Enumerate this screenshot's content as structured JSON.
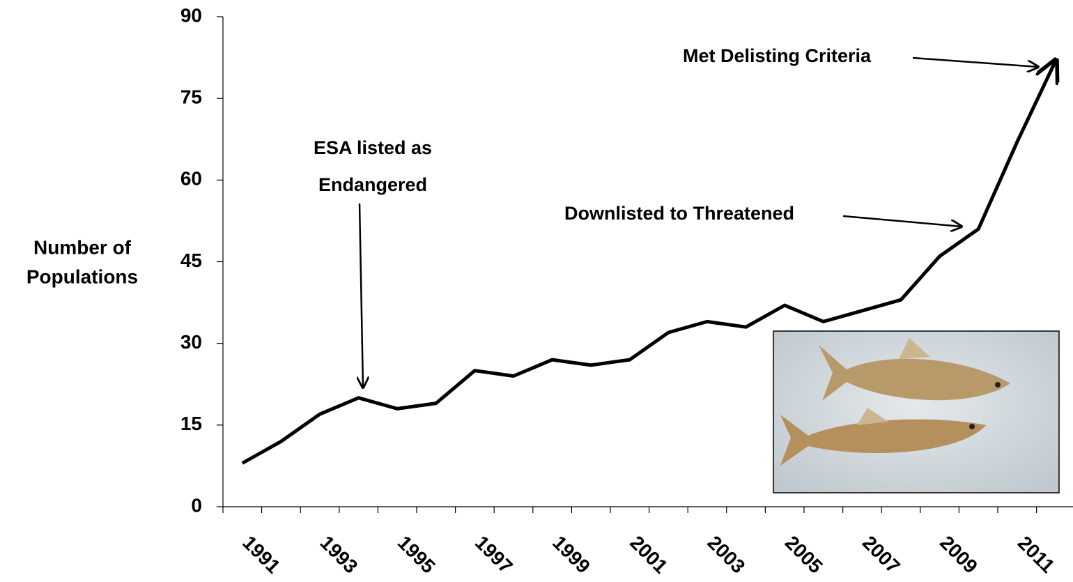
{
  "chart_data": {
    "type": "line",
    "ylabel": [
      "Number of",
      "Populations"
    ],
    "categories": [
      "1991",
      null,
      "1993",
      null,
      "1995",
      null,
      "1997",
      null,
      "1999",
      null,
      "2001",
      null,
      "2003",
      null,
      "2005",
      null,
      "2007",
      null,
      "2009",
      null,
      "2011",
      null
    ],
    "values": [
      8,
      12,
      17,
      20,
      18,
      19,
      25,
      24,
      27,
      26,
      27,
      32,
      34,
      33,
      37,
      34,
      36,
      38,
      46,
      51,
      67,
      82
    ],
    "color": "#000000",
    "ylim": [
      0,
      90
    ],
    "yticks": [
      0,
      15,
      30,
      45,
      60,
      75,
      90
    ],
    "annotations": [
      [
        "ESA listed as",
        "Endangered"
      ],
      [
        "Downlisted to Threatened"
      ],
      [
        "Met Delisting Criteria"
      ]
    ]
  }
}
